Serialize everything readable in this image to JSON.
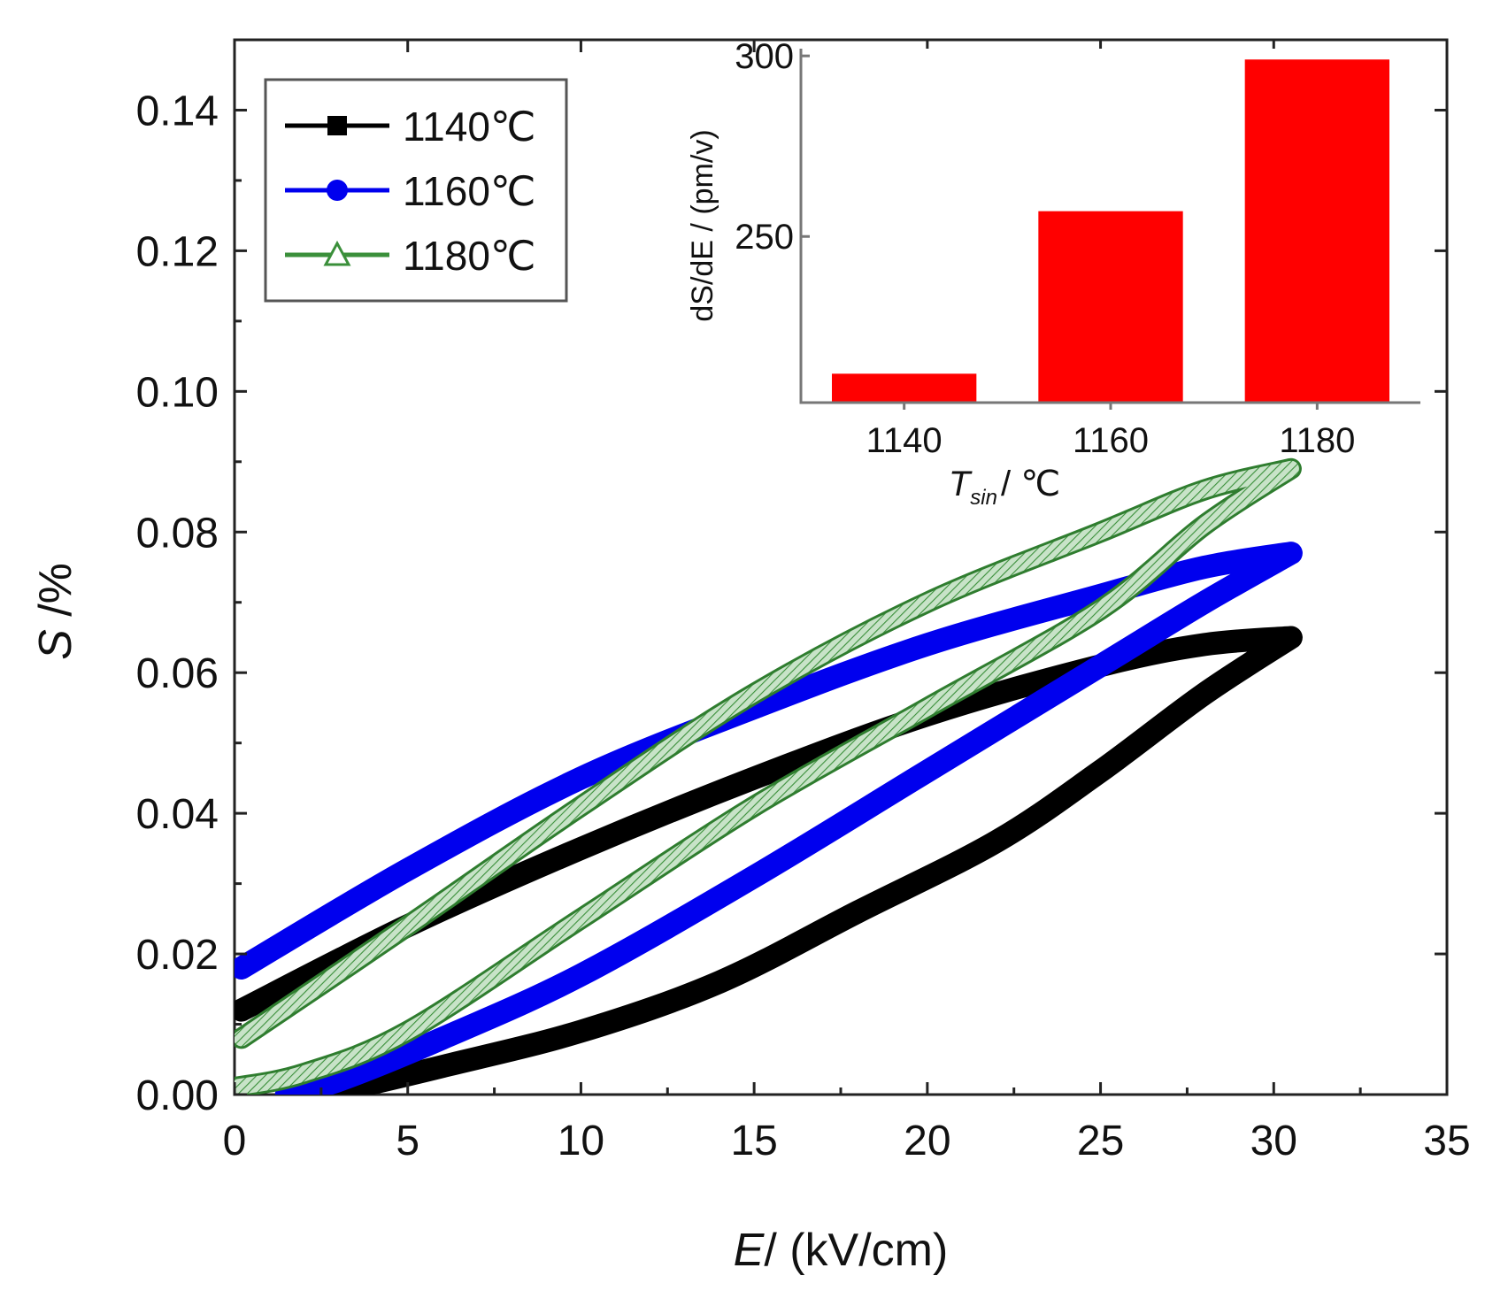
{
  "chart_data": [
    {
      "type": "line",
      "title": "",
      "xlabel": "E/ (kV/cm)",
      "xlabel_italic": "E",
      "xlabel_rest": "/ (kV/cm)",
      "ylabel": "S /%",
      "ylabel_italic": "S",
      "ylabel_rest": " /%",
      "xlim": [
        0,
        35
      ],
      "ylim": [
        0,
        0.15
      ],
      "xticks": [
        0,
        5,
        10,
        15,
        20,
        25,
        30,
        35
      ],
      "yticks": [
        0.0,
        0.02,
        0.04,
        0.06,
        0.08,
        0.1,
        0.12,
        0.14
      ],
      "ytick_labels": [
        "0.00",
        "0.02",
        "0.04",
        "0.06",
        "0.08",
        "0.10",
        "0.12",
        "0.14"
      ],
      "grid": false,
      "legend_position": "top-left",
      "series": [
        {
          "name": "1140℃",
          "color": "#000000",
          "marker": "square",
          "upper": [
            [
              0.2,
              0.012
            ],
            [
              5,
              0.024
            ],
            [
              10,
              0.035
            ],
            [
              15,
              0.045
            ],
            [
              20,
              0.054
            ],
            [
              25,
              0.061
            ],
            [
              28,
              0.064
            ],
            [
              30.5,
              0.065
            ]
          ],
          "lower": [
            [
              30.5,
              0.065
            ],
            [
              28,
              0.057
            ],
            [
              25,
              0.046
            ],
            [
              22,
              0.036
            ],
            [
              18,
              0.026
            ],
            [
              14,
              0.016
            ],
            [
              10,
              0.009
            ],
            [
              6,
              0.004
            ],
            [
              3,
              0.0005
            ],
            [
              2.5,
              0
            ]
          ]
        },
        {
          "name": "1160℃",
          "color": "#0000ee",
          "marker": "circle",
          "upper": [
            [
              0.2,
              0.018
            ],
            [
              5,
              0.032
            ],
            [
              10,
              0.045
            ],
            [
              15,
              0.055
            ],
            [
              20,
              0.064
            ],
            [
              25,
              0.071
            ],
            [
              28,
              0.075
            ],
            [
              30.5,
              0.077
            ]
          ],
          "lower": [
            [
              30.5,
              0.077
            ],
            [
              28,
              0.07
            ],
            [
              25,
              0.061
            ],
            [
              20,
              0.046
            ],
            [
              15,
              0.031
            ],
            [
              10,
              0.017
            ],
            [
              6,
              0.008
            ],
            [
              3,
              0.002
            ],
            [
              1.5,
              0
            ]
          ]
        },
        {
          "name": "1180℃",
          "color": "#3a8f3a",
          "marker": "open-triangle",
          "upper": [
            [
              0.2,
              0.008
            ],
            [
              5,
              0.024
            ],
            [
              10,
              0.041
            ],
            [
              15,
              0.057
            ],
            [
              20,
              0.07
            ],
            [
              25,
              0.08
            ],
            [
              28,
              0.086
            ],
            [
              30.5,
              0.089
            ]
          ],
          "lower": [
            [
              30.5,
              0.089
            ],
            [
              28,
              0.081
            ],
            [
              25,
              0.069
            ],
            [
              20,
              0.055
            ],
            [
              15,
              0.041
            ],
            [
              10,
              0.025
            ],
            [
              5,
              0.009
            ],
            [
              2,
              0.003
            ],
            [
              0,
              0.001
            ]
          ]
        }
      ]
    },
    {
      "type": "bar",
      "role": "inset",
      "categories": [
        "1140",
        "1160",
        "1180"
      ],
      "values": [
        212,
        257,
        299
      ],
      "color": "#ff0000",
      "ylim": [
        204,
        302
      ],
      "yticks": [
        250,
        300
      ],
      "ylabel": "dS/dE / (pm/v)",
      "xlabel_main": "T",
      "xlabel_sub": "sin",
      "xlabel_rest": "/ ℃",
      "grid": false
    }
  ]
}
